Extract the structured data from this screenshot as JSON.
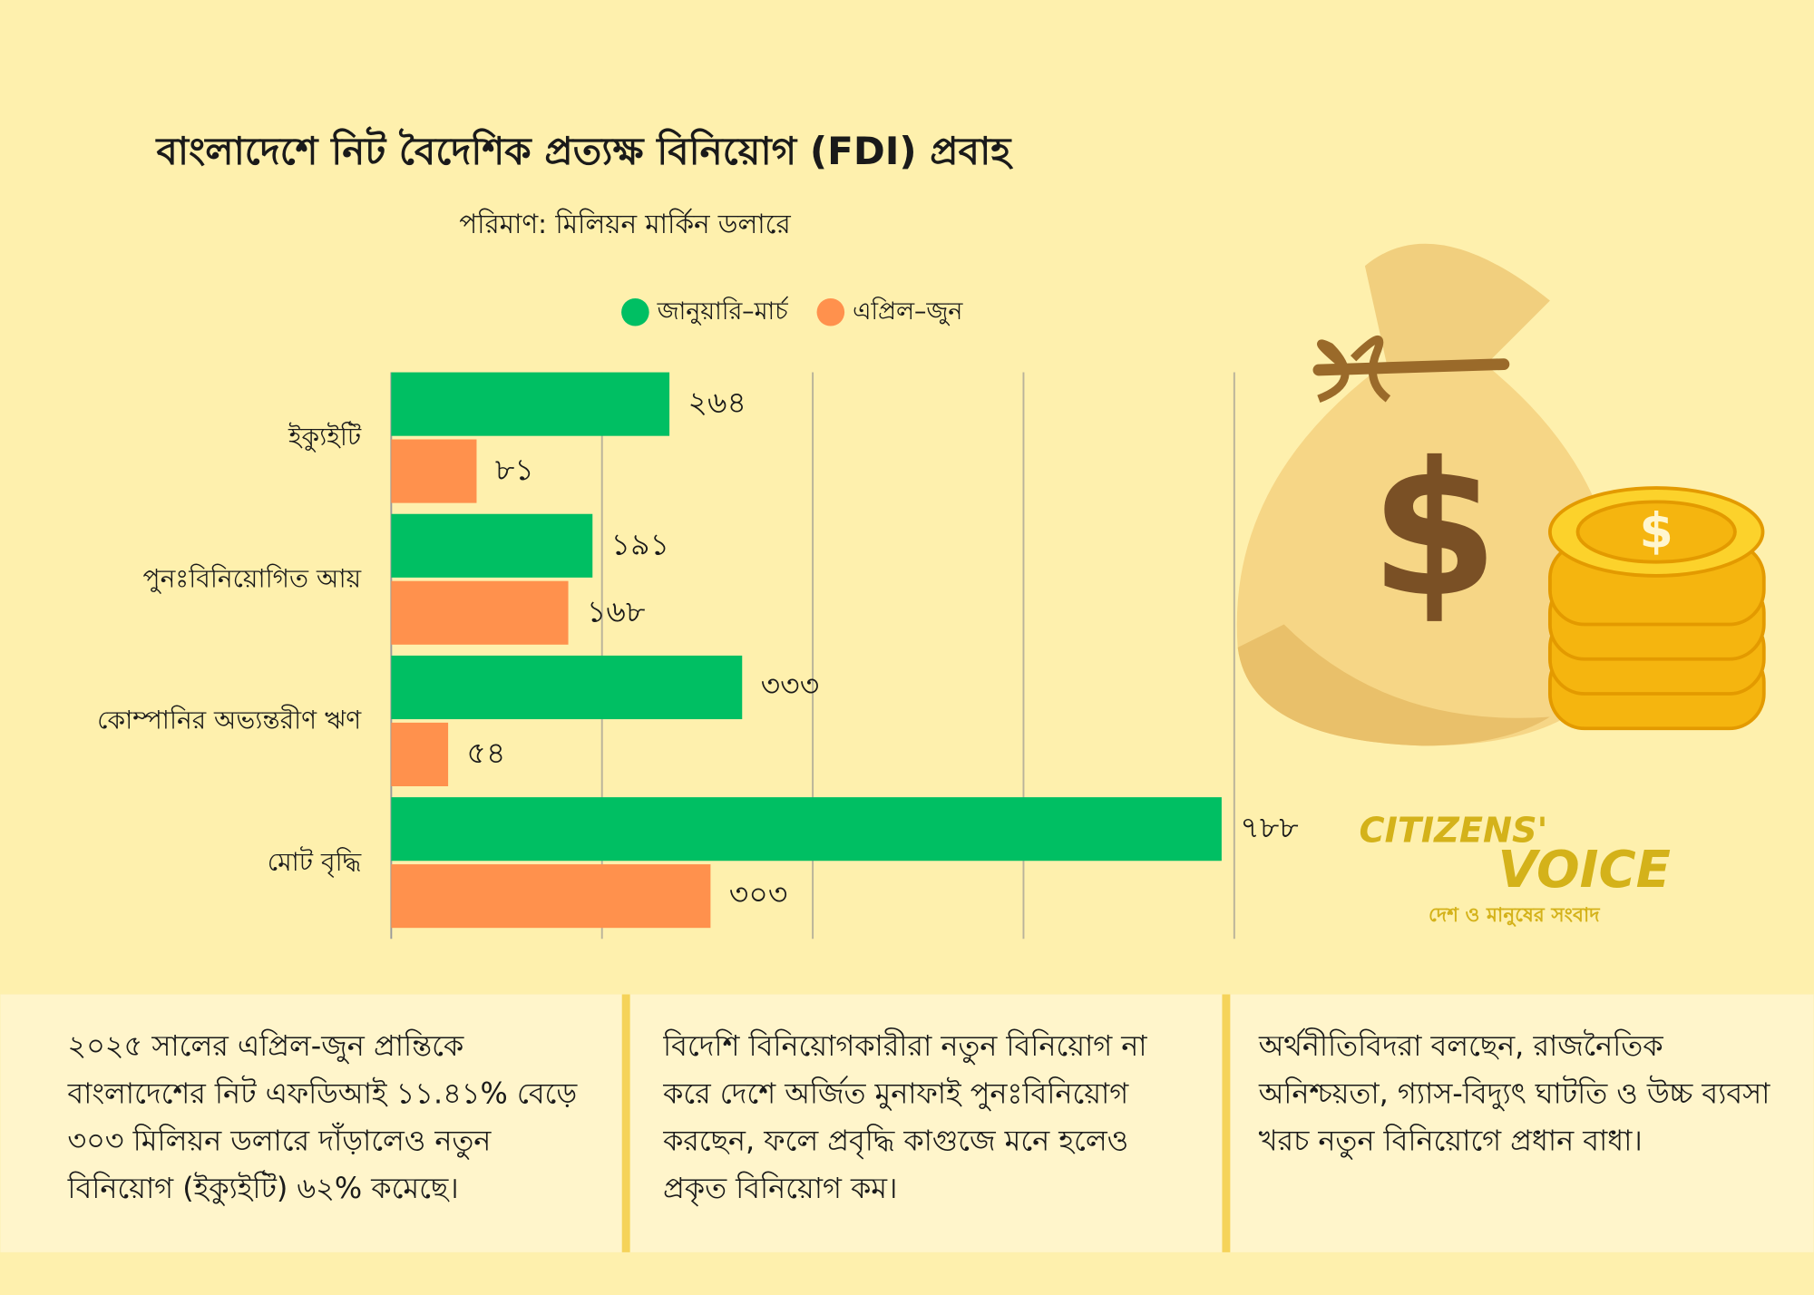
{
  "chart_data": {
    "type": "bar",
    "orientation": "horizontal",
    "title": "বাংলাদেশে নিট বৈদেশিক প্রত্যক্ষ বিনিয়োগ (FDI) প্রবাহ",
    "subtitle": "পরিমাণ: মিলিয়ন মার্কিন ডলারে",
    "categories": [
      "ইক্যুইটি",
      "পুনঃবিনিয়োগিত আয়",
      "কোম্পানির অভ্যন্তরীণ ঋণ",
      "মোট বৃদ্ধি"
    ],
    "series": [
      {
        "name": "জানুয়ারি–মার্চ",
        "color": "#00bf63",
        "values": [
          264,
          191,
          333,
          788
        ],
        "value_labels": [
          "২৬৪",
          "১৯১",
          "৩৩৩",
          "৭৮৮"
        ]
      },
      {
        "name": "এপ্রিল–জুন",
        "color": "#ff914d",
        "values": [
          81,
          168,
          54,
          303
        ],
        "value_labels": [
          "৮১",
          "১৬৮",
          "৫৪",
          "৩০৩"
        ]
      }
    ],
    "xlim": [
      0,
      800
    ],
    "xticks": [
      0,
      200,
      400,
      600,
      800
    ],
    "grid": true,
    "legend": "top"
  },
  "notes": [
    "২০২৫ সালের এপ্রিল-জুন প্রান্তিকে বাংলাদেশের নিট এফডিআই ১১.৪১% বেড়ে ৩০৩ মিলিয়ন ডলারে দাঁড়ালেও নতুন বিনিয়োগ (ইক্যুইটি) ৬২% কমেছে।",
    "বিদেশি বিনিয়োগকারীরা নতুন বিনিয়োগ না করে দেশে অর্জিত মুনাফাই পুনঃবিনিয়োগ করছেন, ফলে প্রবৃদ্ধি কাগুজে মনে হলেও প্রকৃত বিনিয়োগ কম।",
    "অর্থনীতিবিদরা বলছেন, রাজনৈতিক অনিশ্চয়তা, গ্যাস-বিদ্যুৎ ঘাটতি ও উচ্চ ব্যবসা খরচ নতুন বিনিয়োগে প্রধান বাধা।"
  ],
  "logo": {
    "name_top": "CITIZENS'",
    "name_bottom": "VOICE",
    "tagline": "দেশ ও মানুষের সংবাদ"
  }
}
